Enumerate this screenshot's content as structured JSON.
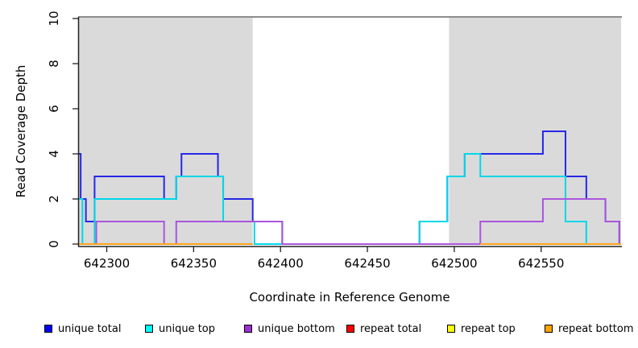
{
  "figure": {
    "xlabel": "Coordinate in Reference Genome",
    "ylabel": "Read Coverage Depth"
  },
  "chart_data": {
    "type": "line",
    "subtype": "step",
    "title": "",
    "xlabel": "Coordinate in Reference Genome",
    "ylabel": "Read Coverage Depth",
    "xlim": [
      642284,
      642596
    ],
    "ylim": [
      0,
      10
    ],
    "grid": false,
    "x_ticks": {
      "values": [
        642300,
        642350,
        642400,
        642450,
        642500,
        642550
      ],
      "labels": [
        "642300",
        "642350",
        "642400",
        "642450",
        "642500",
        "642550"
      ]
    },
    "y_ticks": {
      "values": [
        0,
        2,
        4,
        6,
        8,
        10
      ],
      "labels": [
        "0",
        "2",
        "4",
        "6",
        "8",
        "10"
      ]
    },
    "shade_color": "#DADADA",
    "shaded_regions": [
      {
        "from": 642284,
        "to": 642384
      },
      {
        "from": 642497,
        "to": 642596
      }
    ],
    "legend": {
      "position": "bottom",
      "items": [
        {
          "label": "unique total",
          "color": "#0000FF"
        },
        {
          "label": "unique top",
          "color": "#00FFFF"
        },
        {
          "label": "unique bottom",
          "color": "#9B30D0"
        },
        {
          "label": "repeat total",
          "color": "#FF0000"
        },
        {
          "label": "repeat top",
          "color": "#FFFF00"
        },
        {
          "label": "repeat bottom",
          "color": "#FFA500"
        }
      ]
    },
    "series": [
      {
        "name": "unique total",
        "line_color": "#2727E8",
        "segments": [
          [
            [
              642284,
              4
            ],
            [
              642285,
              2
            ],
            [
              642288,
              1
            ],
            [
              642293,
              3
            ],
            [
              642333,
              2
            ],
            [
              642340,
              3
            ],
            [
              642343,
              4
            ],
            [
              642364,
              3
            ],
            [
              642367,
              2
            ],
            [
              642384,
              1
            ],
            [
              642401,
              0
            ],
            [
              642480,
              1
            ],
            [
              642496,
              3
            ],
            [
              642506,
              4
            ],
            [
              642551,
              5
            ],
            [
              642564,
              3
            ],
            [
              642576,
              2
            ],
            [
              642587,
              1
            ],
            [
              642595,
              0
            ],
            [
              642596,
              0
            ]
          ]
        ]
      },
      {
        "name": "unique top",
        "line_color": "#00D8E8",
        "segments": [
          [
            [
              642284,
              2
            ],
            [
              642286,
              0
            ],
            [
              642293,
              2
            ],
            [
              642340,
              3
            ],
            [
              642367,
              1
            ],
            [
              642385,
              0
            ],
            [
              642480,
              1
            ],
            [
              642496,
              3
            ],
            [
              642506,
              4
            ],
            [
              642515,
              3
            ],
            [
              642564,
              1
            ],
            [
              642576,
              0
            ],
            [
              642596,
              0
            ]
          ]
        ]
      },
      {
        "name": "unique bottom",
        "line_color": "#AA55DD",
        "segments": [
          [
            [
              642284,
              0
            ],
            [
              642294,
              1
            ],
            [
              642333,
              0
            ],
            [
              642340,
              1
            ],
            [
              642401,
              0
            ],
            [
              642515,
              1
            ],
            [
              642551,
              2
            ],
            [
              642587,
              1
            ],
            [
              642595,
              0
            ],
            [
              642596,
              0
            ]
          ]
        ]
      },
      {
        "name": "repeat total",
        "line_color": "#FF0000",
        "segments": [
          [
            [
              642284,
              0
            ],
            [
              642384,
              0
            ]
          ],
          [
            [
              642515,
              0
            ],
            [
              642596,
              0
            ]
          ]
        ]
      },
      {
        "name": "repeat top",
        "line_color": "#FFFF00",
        "segments": [
          [
            [
              642284,
              0
            ],
            [
              642384,
              0
            ]
          ],
          [
            [
              642515,
              0
            ],
            [
              642596,
              0
            ]
          ]
        ]
      },
      {
        "name": "repeat bottom",
        "line_color": "#FFA217",
        "segments": [
          [
            [
              642284,
              0
            ],
            [
              642384,
              0
            ]
          ],
          [
            [
              642515,
              0
            ],
            [
              642596,
              0
            ]
          ]
        ]
      }
    ]
  }
}
